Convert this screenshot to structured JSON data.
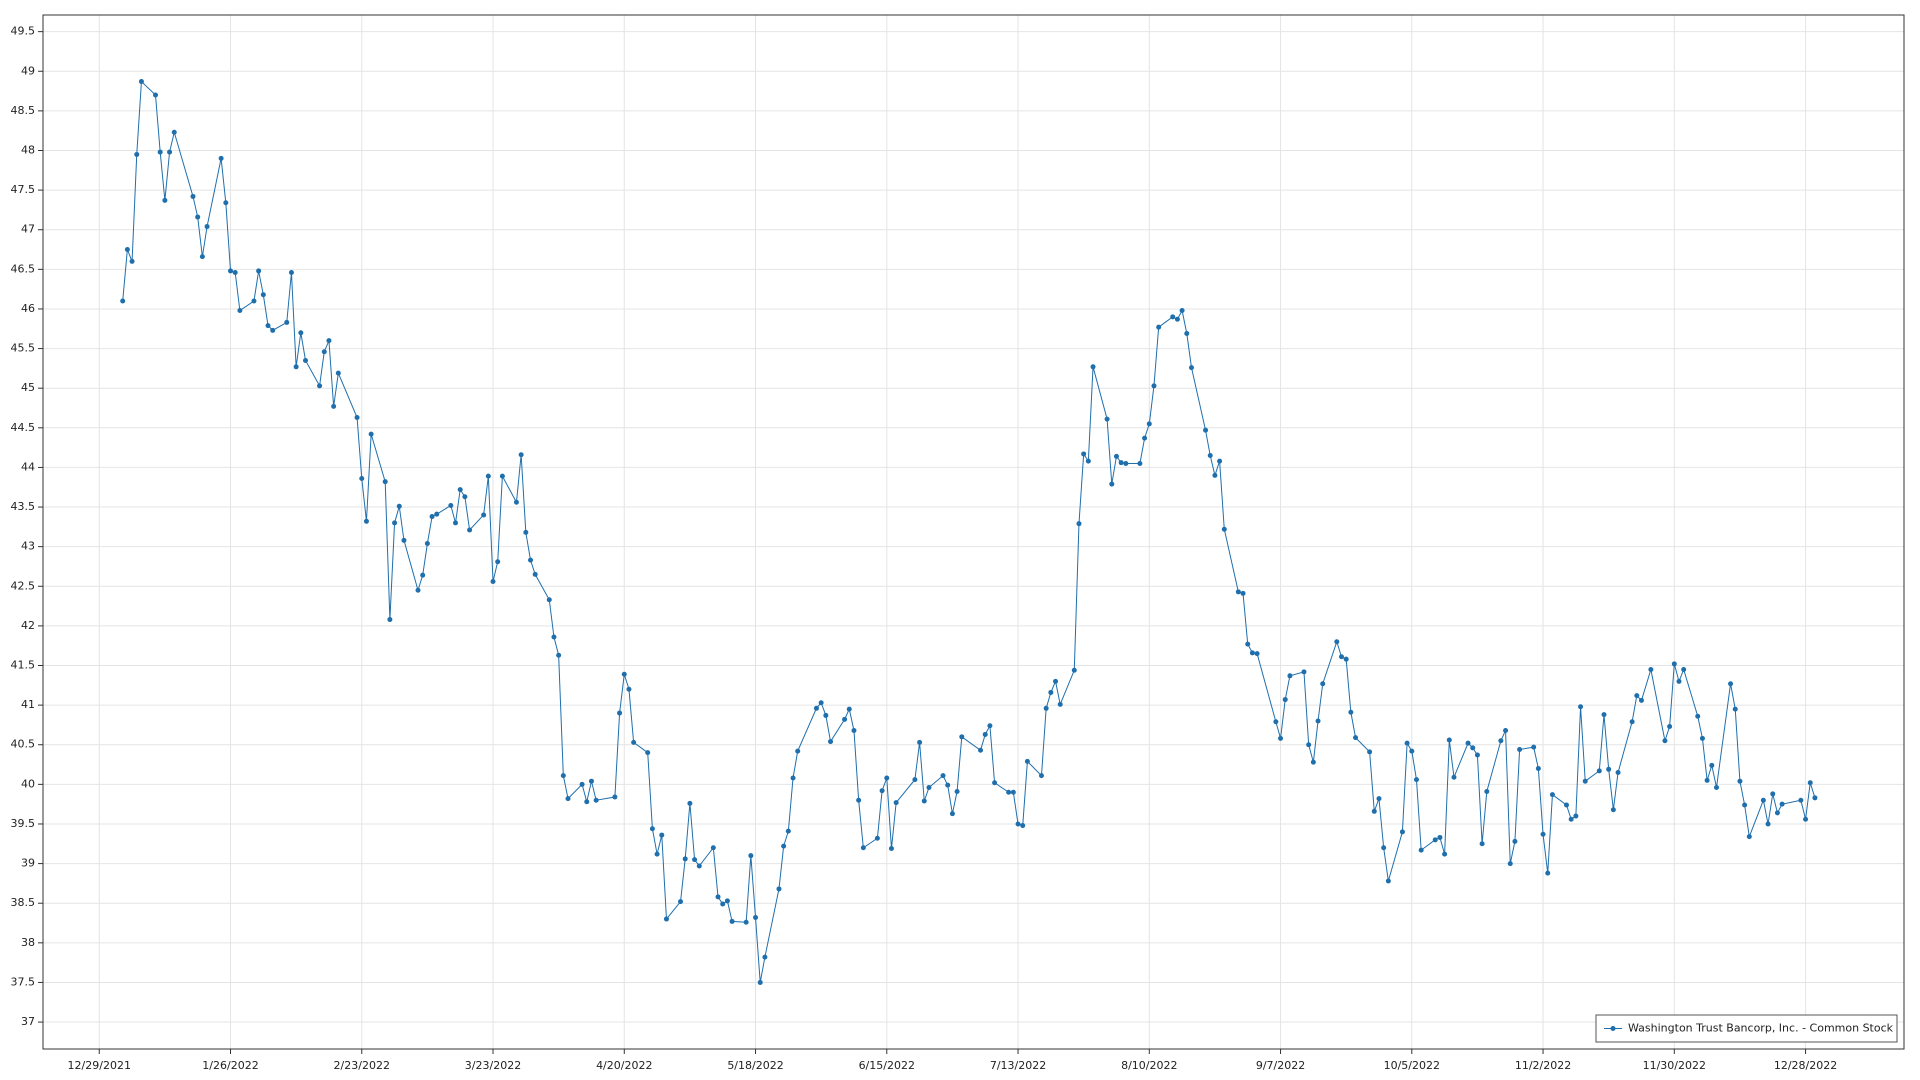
{
  "chart_data": {
    "type": "line",
    "x": [
      "1/3/2022",
      "1/4/2022",
      "1/5/2022",
      "1/6/2022",
      "1/7/2022",
      "1/10/2022",
      "1/11/2022",
      "1/12/2022",
      "1/13/2022",
      "1/14/2022",
      "1/18/2022",
      "1/19/2022",
      "1/20/2022",
      "1/21/2022",
      "1/24/2022",
      "1/25/2022",
      "1/26/2022",
      "1/27/2022",
      "1/28/2022",
      "1/31/2022",
      "2/1/2022",
      "2/2/2022",
      "2/3/2022",
      "2/4/2022",
      "2/7/2022",
      "2/8/2022",
      "2/9/2022",
      "2/10/2022",
      "2/11/2022",
      "2/14/2022",
      "2/15/2022",
      "2/16/2022",
      "2/17/2022",
      "2/18/2022",
      "2/22/2022",
      "2/23/2022",
      "2/24/2022",
      "2/25/2022",
      "2/28/2022",
      "3/1/2022",
      "3/2/2022",
      "3/3/2022",
      "3/4/2022",
      "3/7/2022",
      "3/8/2022",
      "3/9/2022",
      "3/10/2022",
      "3/11/2022",
      "3/14/2022",
      "3/15/2022",
      "3/16/2022",
      "3/17/2022",
      "3/18/2022",
      "3/21/2022",
      "3/22/2022",
      "3/23/2022",
      "3/24/2022",
      "3/25/2022",
      "3/28/2022",
      "3/29/2022",
      "3/30/2022",
      "3/31/2022",
      "4/1/2022",
      "4/4/2022",
      "4/5/2022",
      "4/6/2022",
      "4/7/2022",
      "4/8/2022",
      "4/11/2022",
      "4/12/2022",
      "4/13/2022",
      "4/14/2022",
      "4/18/2022",
      "4/19/2022",
      "4/20/2022",
      "4/21/2022",
      "4/22/2022",
      "4/25/2022",
      "4/26/2022",
      "4/27/2022",
      "4/28/2022",
      "4/29/2022",
      "5/2/2022",
      "5/3/2022",
      "5/4/2022",
      "5/5/2022",
      "5/6/2022",
      "5/9/2022",
      "5/10/2022",
      "5/11/2022",
      "5/12/2022",
      "5/13/2022",
      "5/16/2022",
      "5/17/2022",
      "5/18/2022",
      "5/19/2022",
      "5/20/2022",
      "5/23/2022",
      "5/24/2022",
      "5/25/2022",
      "5/26/2022",
      "5/27/2022",
      "5/31/2022",
      "6/1/2022",
      "6/2/2022",
      "6/3/2022",
      "6/6/2022",
      "6/7/2022",
      "6/8/2022",
      "6/9/2022",
      "6/10/2022",
      "6/13/2022",
      "6/14/2022",
      "6/15/2022",
      "6/16/2022",
      "6/17/2022",
      "6/21/2022",
      "6/22/2022",
      "6/23/2022",
      "6/24/2022",
      "6/27/2022",
      "6/28/2022",
      "6/29/2022",
      "6/30/2022",
      "7/1/2022",
      "7/5/2022",
      "7/6/2022",
      "7/7/2022",
      "7/8/2022",
      "7/11/2022",
      "7/12/2022",
      "7/13/2022",
      "7/14/2022",
      "7/15/2022",
      "7/18/2022",
      "7/19/2022",
      "7/20/2022",
      "7/21/2022",
      "7/22/2022",
      "7/25/2022",
      "7/26/2022",
      "7/27/2022",
      "7/28/2022",
      "7/29/2022",
      "8/1/2022",
      "8/2/2022",
      "8/3/2022",
      "8/4/2022",
      "8/5/2022",
      "8/8/2022",
      "8/9/2022",
      "8/10/2022",
      "8/11/2022",
      "8/12/2022",
      "8/15/2022",
      "8/16/2022",
      "8/17/2022",
      "8/18/2022",
      "8/19/2022",
      "8/22/2022",
      "8/23/2022",
      "8/24/2022",
      "8/25/2022",
      "8/26/2022",
      "8/29/2022",
      "8/30/2022",
      "8/31/2022",
      "9/1/2022",
      "9/2/2022",
      "9/6/2022",
      "9/7/2022",
      "9/8/2022",
      "9/9/2022",
      "9/12/2022",
      "9/13/2022",
      "9/14/2022",
      "9/15/2022",
      "9/16/2022",
      "9/19/2022",
      "9/20/2022",
      "9/21/2022",
      "9/22/2022",
      "9/23/2022",
      "9/26/2022",
      "9/27/2022",
      "9/28/2022",
      "9/29/2022",
      "9/30/2022",
      "10/3/2022",
      "10/4/2022",
      "10/5/2022",
      "10/6/2022",
      "10/7/2022",
      "10/10/2022",
      "10/11/2022",
      "10/12/2022",
      "10/13/2022",
      "10/14/2022",
      "10/17/2022",
      "10/18/2022",
      "10/19/2022",
      "10/20/2022",
      "10/21/2022",
      "10/24/2022",
      "10/25/2022",
      "10/26/2022",
      "10/27/2022",
      "10/28/2022",
      "10/31/2022",
      "11/1/2022",
      "11/2/2022",
      "11/3/2022",
      "11/4/2022",
      "11/7/2022",
      "11/8/2022",
      "11/9/2022",
      "11/10/2022",
      "11/11/2022",
      "11/14/2022",
      "11/15/2022",
      "11/16/2022",
      "11/17/2022",
      "11/18/2022",
      "11/21/2022",
      "11/22/2022",
      "11/23/2022",
      "11/25/2022",
      "11/28/2022",
      "11/29/2022",
      "11/30/2022",
      "12/1/2022",
      "12/2/2022",
      "12/5/2022",
      "12/6/2022",
      "12/7/2022",
      "12/8/2022",
      "12/9/2022",
      "12/12/2022",
      "12/13/2022",
      "12/14/2022",
      "12/15/2022",
      "12/16/2022",
      "12/19/2022",
      "12/20/2022",
      "12/21/2022",
      "12/22/2022",
      "12/23/2022",
      "12/27/2022",
      "12/28/2022",
      "12/29/2022",
      "12/30/2022"
    ],
    "series": [
      {
        "name": "Washington Trust Bancorp, Inc. - Common Stock",
        "color": "#1f6fad",
        "values": [
          46.1,
          46.75,
          46.6,
          47.95,
          48.87,
          48.7,
          47.98,
          47.37,
          47.98,
          48.23,
          47.42,
          47.16,
          46.66,
          47.04,
          47.9,
          47.34,
          46.48,
          46.46,
          45.98,
          46.1,
          46.48,
          46.18,
          45.79,
          45.73,
          45.83,
          46.46,
          45.27,
          45.7,
          45.35,
          45.03,
          45.46,
          45.6,
          44.77,
          45.19,
          44.63,
          43.86,
          43.32,
          44.42,
          43.82,
          42.08,
          43.3,
          43.51,
          43.08,
          42.45,
          42.64,
          43.04,
          43.38,
          43.41,
          43.52,
          43.3,
          43.72,
          43.63,
          43.21,
          43.4,
          43.89,
          42.56,
          42.81,
          43.89,
          43.56,
          44.16,
          43.18,
          42.83,
          42.65,
          42.33,
          41.86,
          41.63,
          40.11,
          39.82,
          40.0,
          39.78,
          40.04,
          39.8,
          39.84,
          40.9,
          41.39,
          41.2,
          40.53,
          40.4,
          39.44,
          39.12,
          39.36,
          38.3,
          38.52,
          39.06,
          39.76,
          39.05,
          38.97,
          39.2,
          38.58,
          38.49,
          38.53,
          38.27,
          38.26,
          39.1,
          38.32,
          37.5,
          37.82,
          38.68,
          39.22,
          39.41,
          40.08,
          40.42,
          40.96,
          41.03,
          40.87,
          40.54,
          40.82,
          40.95,
          40.68,
          39.8,
          39.2,
          39.32,
          39.92,
          40.08,
          39.19,
          39.77,
          40.06,
          40.53,
          39.79,
          39.96,
          40.11,
          39.99,
          39.63,
          39.91,
          40.6,
          40.43,
          40.63,
          40.74,
          40.02,
          39.9,
          39.9,
          39.5,
          39.48,
          40.29,
          40.11,
          40.96,
          41.16,
          41.3,
          41.01,
          41.44,
          43.29,
          44.17,
          44.08,
          45.27,
          44.61,
          43.79,
          44.14,
          44.06,
          44.05,
          44.05,
          44.37,
          44.55,
          45.03,
          45.77,
          45.9,
          45.87,
          45.98,
          45.69,
          45.26,
          44.47,
          44.15,
          43.9,
          44.08,
          43.22,
          42.43,
          42.41,
          41.77,
          41.66,
          41.65,
          40.79,
          40.58,
          41.07,
          41.37,
          41.42,
          40.5,
          40.28,
          40.8,
          41.27,
          41.8,
          41.61,
          41.58,
          40.91,
          40.59,
          40.41,
          39.66,
          39.82,
          39.2,
          38.78,
          39.4,
          40.52,
          40.42,
          40.06,
          39.17,
          39.3,
          39.33,
          39.12,
          40.56,
          40.09,
          40.52,
          40.46,
          40.37,
          39.25,
          39.91,
          40.55,
          40.68,
          39.0,
          39.28,
          40.44,
          40.47,
          40.2,
          39.37,
          38.88,
          39.87,
          39.74,
          39.56,
          39.6,
          40.98,
          40.04,
          40.17,
          40.88,
          40.19,
          39.68,
          40.15,
          40.79,
          41.12,
          41.06,
          41.45,
          40.55,
          40.73,
          41.52,
          41.3,
          41.45,
          40.86,
          40.58,
          40.05,
          40.24,
          39.96,
          41.27,
          40.95,
          40.04,
          39.74,
          39.34,
          39.8,
          39.5,
          39.88,
          39.64,
          39.75,
          39.8,
          39.56,
          40.02,
          39.83
        ]
      }
    ],
    "xlim": [
      "12/17/2021",
      "1/18/2023"
    ],
    "xticks": [
      "12/29/2021",
      "1/26/2022",
      "2/23/2022",
      "3/23/2022",
      "4/20/2022",
      "5/18/2022",
      "6/15/2022",
      "7/13/2022",
      "8/10/2022",
      "9/7/2022",
      "10/5/2022",
      "11/2/2022",
      "11/30/2022",
      "12/28/2022"
    ],
    "ylim": [
      36.66,
      49.71
    ],
    "yticks": [
      37,
      37.5,
      38,
      38.5,
      39,
      39.5,
      40,
      40.5,
      41,
      41.5,
      42,
      42.5,
      43,
      43.5,
      44,
      44.5,
      45,
      45.5,
      46,
      46.5,
      47,
      47.5,
      48,
      48.5,
      49,
      49.5
    ],
    "grid": true,
    "legend": "lower right"
  }
}
